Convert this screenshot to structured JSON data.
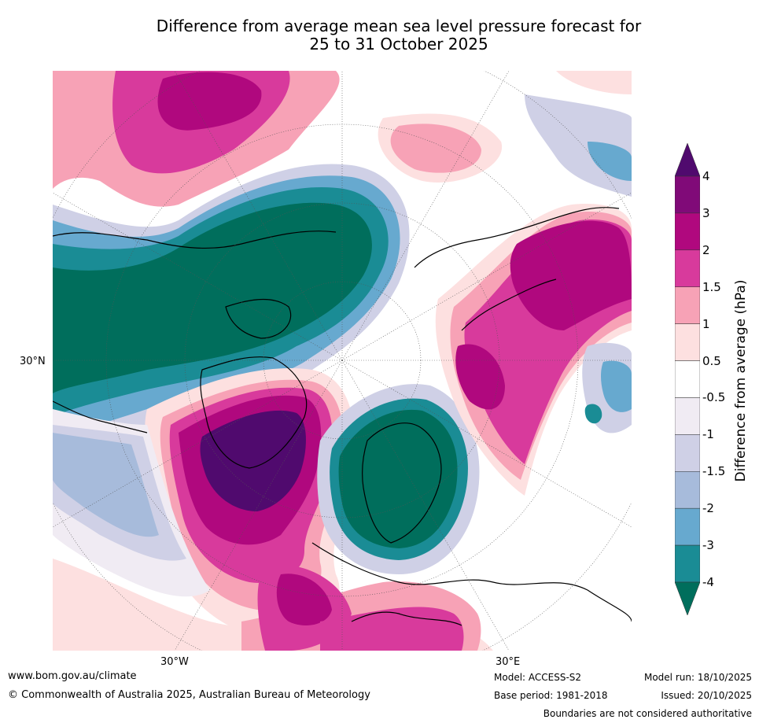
{
  "title": {
    "line1": "Difference from average mean sea level pressure forecast for",
    "line2": "25 to 31 October 2025"
  },
  "map": {
    "projection": "north polar stereographic",
    "lat_label": "30°N",
    "lon_labels": [
      "30°W",
      "30°E"
    ]
  },
  "colorbar": {
    "label": "Difference from average (hPa)",
    "ticks": [
      "4",
      "3",
      "2",
      "1.5",
      "1",
      "0.5",
      "-0.5",
      "-1",
      "-1.5",
      "-2",
      "-3",
      "-4"
    ],
    "colors": [
      "#500a6e",
      "#800a78",
      "#b0087e",
      "#d83a9c",
      "#f7a2b6",
      "#fde0e0",
      "#ffffff",
      "#f0ebf3",
      "#cfd0e6",
      "#a7bbdb",
      "#67a9cf",
      "#1a8c95",
      "#006e5c"
    ]
  },
  "footer": {
    "website": "www.bom.gov.au/climate",
    "copyright": "© Commonwealth of Australia 2025, Australian Bureau of Meteorology",
    "model": "Model: ACCESS-S2",
    "base_period": "Base period: 1981-2018",
    "model_run": "Model run: 18/10/2025",
    "issued": "Issued: 20/10/2025",
    "disclaimer": "Boundaries are not considered authoritative"
  }
}
